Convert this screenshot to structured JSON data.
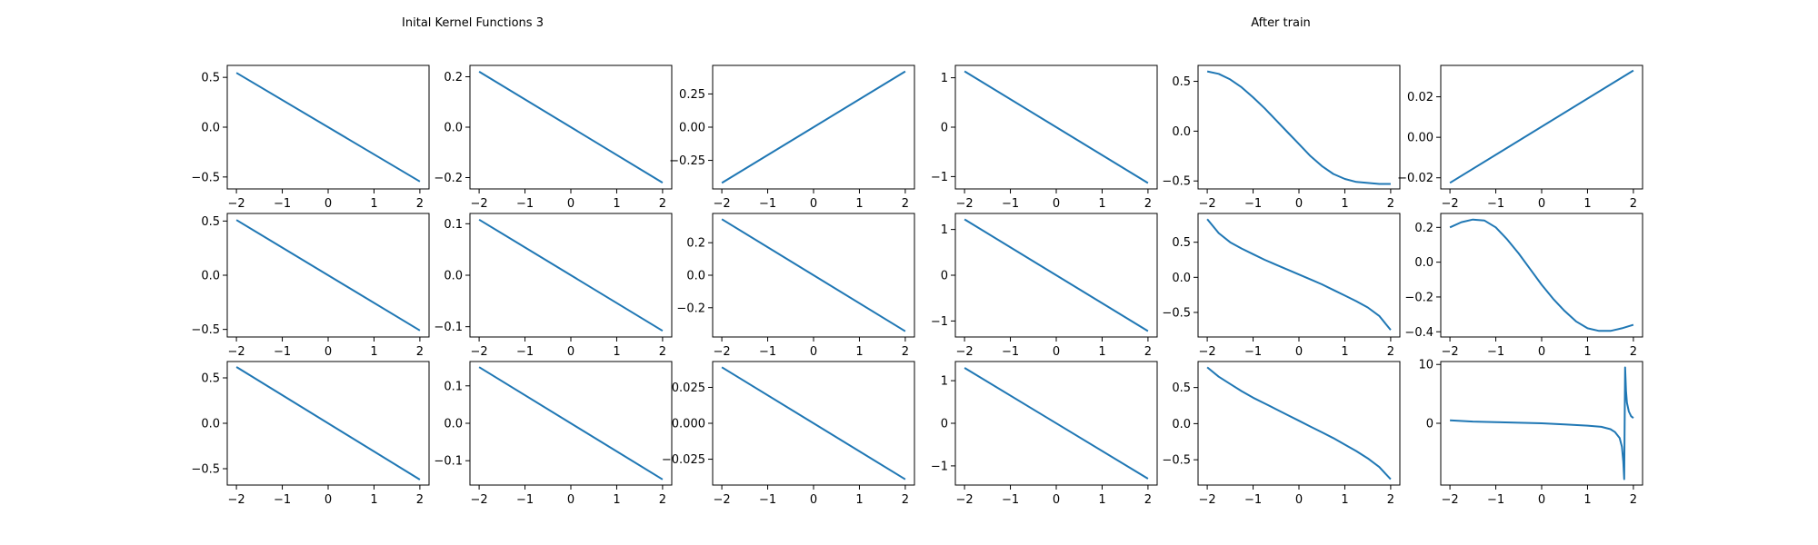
{
  "figure": {
    "left_title": "Inital Kernel Functions 3",
    "right_title": "After train"
  },
  "colors": {
    "series": "#1f77b4"
  },
  "chart_data": [
    {
      "type": "line",
      "row": 0,
      "col": 0,
      "xlim": [
        -2.2,
        2.2
      ],
      "ylim": [
        -0.62,
        0.62
      ],
      "xticks": [
        -2,
        -1,
        0,
        1,
        2
      ],
      "yticks": [
        -0.5,
        0.0,
        0.5
      ],
      "x": [
        -2,
        2
      ],
      "y": [
        0.545,
        -0.545
      ]
    },
    {
      "type": "line",
      "row": 0,
      "col": 1,
      "xlim": [
        -2.2,
        2.2
      ],
      "ylim": [
        -0.245,
        0.245
      ],
      "xticks": [
        -2,
        -1,
        0,
        1,
        2
      ],
      "yticks": [
        -0.2,
        0.0,
        0.2
      ],
      "x": [
        -2,
        2
      ],
      "y": [
        0.22,
        -0.22
      ]
    },
    {
      "type": "line",
      "row": 0,
      "col": 2,
      "xlim": [
        -2.2,
        2.2
      ],
      "ylim": [
        -0.465,
        0.465
      ],
      "xticks": [
        -2,
        -1,
        0,
        1,
        2
      ],
      "yticks": [
        -0.25,
        0.0,
        0.25
      ],
      "x": [
        -2,
        2
      ],
      "y": [
        -0.42,
        0.42
      ]
    },
    {
      "type": "line",
      "row": 0,
      "col": 3,
      "xlim": [
        -2.2,
        2.2
      ],
      "ylim": [
        -1.25,
        1.25
      ],
      "xticks": [
        -2,
        -1,
        0,
        1,
        2
      ],
      "yticks": [
        -1,
        0,
        1
      ],
      "x": [
        -2,
        2
      ],
      "y": [
        1.13,
        -1.13
      ]
    },
    {
      "type": "line",
      "row": 0,
      "col": 4,
      "xlim": [
        -2.2,
        2.2
      ],
      "ylim": [
        -0.58,
        0.66
      ],
      "xticks": [
        -2,
        -1,
        0,
        1,
        2
      ],
      "yticks": [
        -0.5,
        0.0,
        0.5
      ],
      "x": [
        -2,
        -1.75,
        -1.5,
        -1.25,
        -1,
        -0.75,
        -0.5,
        -0.25,
        0,
        0.25,
        0.5,
        0.75,
        1,
        1.25,
        1.5,
        1.75,
        2
      ],
      "y": [
        0.6,
        0.575,
        0.52,
        0.44,
        0.34,
        0.23,
        0.11,
        -0.01,
        -0.13,
        -0.25,
        -0.35,
        -0.43,
        -0.48,
        -0.51,
        -0.52,
        -0.53,
        -0.53
      ]
    },
    {
      "type": "line",
      "row": 0,
      "col": 5,
      "xlim": [
        -2.2,
        2.2
      ],
      "ylim": [
        -0.0255,
        0.0355
      ],
      "xticks": [
        -2,
        -1,
        0,
        1,
        2
      ],
      "yticks": [
        -0.02,
        0.0,
        0.02
      ],
      "x": [
        -2,
        2
      ],
      "y": [
        -0.0225,
        0.033
      ]
    },
    {
      "type": "line",
      "row": 1,
      "col": 0,
      "xlim": [
        -2.2,
        2.2
      ],
      "ylim": [
        -0.57,
        0.57
      ],
      "xticks": [
        -2,
        -1,
        0,
        1,
        2
      ],
      "yticks": [
        -0.5,
        0.0,
        0.5
      ],
      "x": [
        -2,
        2
      ],
      "y": [
        0.51,
        -0.51
      ]
    },
    {
      "type": "line",
      "row": 1,
      "col": 1,
      "xlim": [
        -2.2,
        2.2
      ],
      "ylim": [
        -0.12,
        0.12
      ],
      "xticks": [
        -2,
        -1,
        0,
        1,
        2
      ],
      "yticks": [
        -0.1,
        0.0,
        0.1
      ],
      "x": [
        -2,
        2
      ],
      "y": [
        0.108,
        -0.108
      ]
    },
    {
      "type": "line",
      "row": 1,
      "col": 2,
      "xlim": [
        -2.2,
        2.2
      ],
      "ylim": [
        -0.38,
        0.38
      ],
      "xticks": [
        -2,
        -1,
        0,
        1,
        2
      ],
      "yticks": [
        -0.2,
        0.0,
        0.2
      ],
      "x": [
        -2,
        2
      ],
      "y": [
        0.345,
        -0.345
      ]
    },
    {
      "type": "line",
      "row": 1,
      "col": 3,
      "xlim": [
        -2.2,
        2.2
      ],
      "ylim": [
        -1.35,
        1.35
      ],
      "xticks": [
        -2,
        -1,
        0,
        1,
        2
      ],
      "yticks": [
        -1,
        0,
        1
      ],
      "x": [
        -2,
        2
      ],
      "y": [
        1.22,
        -1.22
      ]
    },
    {
      "type": "line",
      "row": 1,
      "col": 4,
      "xlim": [
        -2.2,
        2.2
      ],
      "ylim": [
        -0.85,
        0.91
      ],
      "xticks": [
        -2,
        -1,
        0,
        1,
        2
      ],
      "yticks": [
        -0.5,
        0.0,
        0.5
      ],
      "x": [
        -2,
        -1.75,
        -1.5,
        -1.25,
        -1,
        -0.75,
        -0.5,
        -0.25,
        0,
        0.25,
        0.5,
        0.75,
        1,
        1.25,
        1.5,
        1.75,
        2
      ],
      "y": [
        0.83,
        0.63,
        0.5,
        0.41,
        0.33,
        0.25,
        0.18,
        0.11,
        0.04,
        -0.03,
        -0.1,
        -0.18,
        -0.26,
        -0.34,
        -0.43,
        -0.55,
        -0.75
      ]
    },
    {
      "type": "line",
      "row": 1,
      "col": 5,
      "xlim": [
        -2.2,
        2.2
      ],
      "ylim": [
        -0.43,
        0.28
      ],
      "xticks": [
        -2,
        -1,
        0,
        1,
        2
      ],
      "yticks": [
        -0.4,
        -0.2,
        0.0,
        0.2
      ],
      "x": [
        -2,
        -1.75,
        -1.5,
        -1.25,
        -1,
        -0.75,
        -0.5,
        -0.25,
        0,
        0.25,
        0.5,
        0.75,
        1,
        1.25,
        1.5,
        1.75,
        2
      ],
      "y": [
        0.2,
        0.23,
        0.245,
        0.24,
        0.2,
        0.13,
        0.05,
        -0.04,
        -0.13,
        -0.21,
        -0.28,
        -0.34,
        -0.38,
        -0.395,
        -0.395,
        -0.38,
        -0.36
      ]
    },
    {
      "type": "line",
      "row": 2,
      "col": 0,
      "xlim": [
        -2.2,
        2.2
      ],
      "ylim": [
        -0.68,
        0.68
      ],
      "xticks": [
        -2,
        -1,
        0,
        1,
        2
      ],
      "yticks": [
        -0.5,
        0.0,
        0.5
      ],
      "x": [
        -2,
        2
      ],
      "y": [
        0.62,
        -0.62
      ]
    },
    {
      "type": "line",
      "row": 2,
      "col": 1,
      "xlim": [
        -2.2,
        2.2
      ],
      "ylim": [
        -0.165,
        0.165
      ],
      "xticks": [
        -2,
        -1,
        0,
        1,
        2
      ],
      "yticks": [
        -0.1,
        0.0,
        0.1
      ],
      "x": [
        -2,
        2
      ],
      "y": [
        0.15,
        -0.15
      ]
    },
    {
      "type": "line",
      "row": 2,
      "col": 2,
      "xlim": [
        -2.2,
        2.2
      ],
      "ylim": [
        -0.043,
        0.043
      ],
      "xticks": [
        -2,
        -1,
        0,
        1,
        2
      ],
      "yticks": [
        -0.025,
        0.0,
        0.025
      ],
      "x": [
        -2,
        2
      ],
      "y": [
        0.039,
        -0.039
      ]
    },
    {
      "type": "line",
      "row": 2,
      "col": 3,
      "xlim": [
        -2.2,
        2.2
      ],
      "ylim": [
        -1.45,
        1.45
      ],
      "xticks": [
        -2,
        -1,
        0,
        1,
        2
      ],
      "yticks": [
        -1,
        0,
        1
      ],
      "x": [
        -2,
        2
      ],
      "y": [
        1.3,
        -1.3
      ]
    },
    {
      "type": "line",
      "row": 2,
      "col": 4,
      "xlim": [
        -2.2,
        2.2
      ],
      "ylim": [
        -0.85,
        0.86
      ],
      "xticks": [
        -2,
        -1,
        0,
        1,
        2
      ],
      "yticks": [
        -0.5,
        0.0,
        0.5
      ],
      "x": [
        -2,
        -1.75,
        -1.5,
        -1.25,
        -1,
        -0.75,
        -0.5,
        -0.25,
        0,
        0.25,
        0.5,
        0.75,
        1,
        1.25,
        1.5,
        1.75,
        2
      ],
      "y": [
        0.78,
        0.65,
        0.55,
        0.45,
        0.36,
        0.28,
        0.2,
        0.12,
        0.04,
        -0.04,
        -0.12,
        -0.2,
        -0.29,
        -0.38,
        -0.48,
        -0.6,
        -0.77
      ]
    },
    {
      "type": "line",
      "row": 2,
      "col": 5,
      "xlim": [
        -2.2,
        2.2
      ],
      "ylim": [
        -10.5,
        10.5
      ],
      "xticks": [
        -2,
        -1,
        0,
        1,
        2
      ],
      "yticks": [
        0,
        10
      ],
      "x": [
        -2,
        -1.5,
        -1,
        -0.5,
        0,
        0.5,
        1,
        1.3,
        1.5,
        1.6,
        1.7,
        1.75,
        1.78,
        1.8,
        1.82,
        1.84,
        1.86,
        1.9,
        1.95,
        2
      ],
      "y": [
        0.5,
        0.3,
        0.2,
        0.1,
        0.0,
        -0.2,
        -0.4,
        -0.6,
        -1.0,
        -1.5,
        -2.5,
        -4.0,
        -6.5,
        -9.5,
        9.5,
        5.5,
        3.5,
        2.0,
        1.2,
        0.9
      ]
    }
  ]
}
